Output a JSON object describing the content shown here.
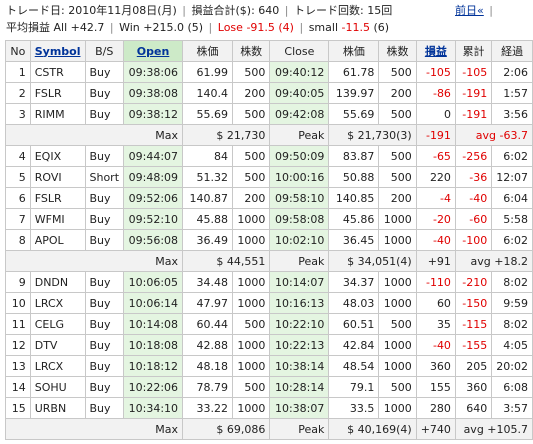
{
  "header": {
    "date_label": "トレード日: ",
    "date_value": "2010年11月08日(月)",
    "total_label": "損益合計($): ",
    "total_value": "640",
    "count_label": "トレード回数: ",
    "count_value": "15回",
    "prev_label": "前日«",
    "close_glyph": "|",
    "avg_label": "平均損益 All",
    "avg_all": "+42.7",
    "win_label": "Win",
    "win_value": "+215.0 (5)",
    "lose_label": "Lose",
    "lose_value": "-91.5 (4)",
    "small_label": "small",
    "small_value": "-11.5",
    "small_count": "(6)"
  },
  "columns": {
    "no": "No",
    "symbol": "Symbol",
    "bs": "B/S",
    "open": "Open",
    "price1": "株価",
    "shares1": "株数",
    "close": "Close",
    "price2": "株価",
    "shares2": "株数",
    "pl": "損益",
    "cum": "累計",
    "elapsed": "経過"
  },
  "groups": [
    {
      "rows": [
        {
          "no": "1",
          "sym": "CSTR",
          "bs": "Buy",
          "open": "09:38:06",
          "p1": "61.99",
          "s1": "500",
          "close": "09:40:12",
          "p2": "61.78",
          "s2": "500",
          "pl": "-105",
          "cum": "-105",
          "el": "2:06"
        },
        {
          "no": "2",
          "sym": "FSLR",
          "bs": "Buy",
          "open": "09:38:08",
          "p1": "140.4",
          "s1": "200",
          "close": "09:40:05",
          "p2": "139.97",
          "s2": "200",
          "pl": "-86",
          "cum": "-191",
          "el": "1:57"
        },
        {
          "no": "3",
          "sym": "RIMM",
          "bs": "Buy",
          "open": "09:38:12",
          "p1": "55.69",
          "s1": "500",
          "close": "09:42:08",
          "p2": "55.69",
          "s2": "500",
          "pl": "0",
          "cum": "-191",
          "el": "3:56"
        }
      ],
      "summary": {
        "max_label": "Max",
        "max_value": "$ 21,730",
        "peak_label": "Peak",
        "peak_value": "$ 21,730(3)",
        "pl": "-191",
        "avg": "avg -63.7"
      }
    },
    {
      "rows": [
        {
          "no": "4",
          "sym": "EQIX",
          "bs": "Buy",
          "open": "09:44:07",
          "p1": "84",
          "s1": "500",
          "close": "09:50:09",
          "p2": "83.87",
          "s2": "500",
          "pl": "-65",
          "cum": "-256",
          "el": "6:02"
        },
        {
          "no": "5",
          "sym": "ROVI",
          "bs": "Short",
          "open": "09:48:09",
          "p1": "51.32",
          "s1": "500",
          "close": "10:00:16",
          "p2": "50.88",
          "s2": "500",
          "pl": "220",
          "cum": "-36",
          "el": "12:07"
        },
        {
          "no": "6",
          "sym": "FSLR",
          "bs": "Buy",
          "open": "09:52:06",
          "p1": "140.87",
          "s1": "200",
          "close": "09:58:10",
          "p2": "140.85",
          "s2": "200",
          "pl": "-4",
          "cum": "-40",
          "el": "6:04"
        },
        {
          "no": "7",
          "sym": "WFMI",
          "bs": "Buy",
          "open": "09:52:10",
          "p1": "45.88",
          "s1": "1000",
          "close": "09:58:08",
          "p2": "45.86",
          "s2": "1000",
          "pl": "-20",
          "cum": "-60",
          "el": "5:58"
        },
        {
          "no": "8",
          "sym": "APOL",
          "bs": "Buy",
          "open": "09:56:08",
          "p1": "36.49",
          "s1": "1000",
          "close": "10:02:10",
          "p2": "36.45",
          "s2": "1000",
          "pl": "-40",
          "cum": "-100",
          "el": "6:02"
        }
      ],
      "summary": {
        "max_label": "Max",
        "max_value": "$ 44,551",
        "peak_label": "Peak",
        "peak_value": "$ 34,051(4)",
        "pl": "+91",
        "avg": "avg +18.2"
      }
    },
    {
      "rows": [
        {
          "no": "9",
          "sym": "DNDN",
          "bs": "Buy",
          "open": "10:06:05",
          "p1": "34.48",
          "s1": "1000",
          "close": "10:14:07",
          "p2": "34.37",
          "s2": "1000",
          "pl": "-110",
          "cum": "-210",
          "el": "8:02"
        },
        {
          "no": "10",
          "sym": "LRCX",
          "bs": "Buy",
          "open": "10:06:14",
          "p1": "47.97",
          "s1": "1000",
          "close": "10:16:13",
          "p2": "48.03",
          "s2": "1000",
          "pl": "60",
          "cum": "-150",
          "el": "9:59"
        },
        {
          "no": "11",
          "sym": "CELG",
          "bs": "Buy",
          "open": "10:14:08",
          "p1": "60.44",
          "s1": "500",
          "close": "10:22:10",
          "p2": "60.51",
          "s2": "500",
          "pl": "35",
          "cum": "-115",
          "el": "8:02"
        },
        {
          "no": "12",
          "sym": "DTV",
          "bs": "Buy",
          "open": "10:18:08",
          "p1": "42.88",
          "s1": "1000",
          "close": "10:22:13",
          "p2": "42.84",
          "s2": "1000",
          "pl": "-40",
          "cum": "-155",
          "el": "4:05"
        },
        {
          "no": "13",
          "sym": "LRCX",
          "bs": "Buy",
          "open": "10:18:12",
          "p1": "48.18",
          "s1": "1000",
          "close": "10:38:14",
          "p2": "48.54",
          "s2": "1000",
          "pl": "360",
          "cum": "205",
          "el": "20:02"
        },
        {
          "no": "14",
          "sym": "SOHU",
          "bs": "Buy",
          "open": "10:22:06",
          "p1": "78.79",
          "s1": "500",
          "close": "10:28:14",
          "p2": "79.1",
          "s2": "500",
          "pl": "155",
          "cum": "360",
          "el": "6:08"
        },
        {
          "no": "15",
          "sym": "URBN",
          "bs": "Buy",
          "open": "10:34:10",
          "p1": "33.22",
          "s1": "1000",
          "close": "10:38:07",
          "p2": "33.5",
          "s2": "1000",
          "pl": "280",
          "cum": "640",
          "el": "3:57"
        }
      ],
      "summary": {
        "max_label": "Max",
        "max_value": "$ 69,086",
        "peak_label": "Peak",
        "peak_value": "$ 40,169(4)",
        "pl": "+740",
        "avg": "avg +105.7"
      }
    }
  ],
  "colors": {
    "negative": "#e00000",
    "link": "#003399",
    "open_header": "#cdeac8",
    "time_cell": "#e4f5e1"
  }
}
